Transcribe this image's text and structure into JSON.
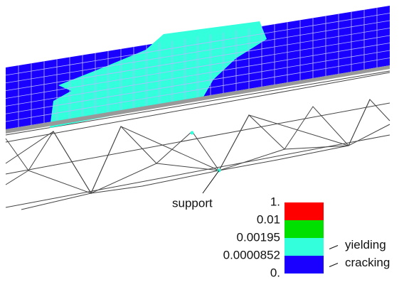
{
  "annotation": {
    "support": "support"
  },
  "legend": {
    "levels": [
      "1.",
      "0.01",
      "0.00195",
      "0.0000852",
      "0."
    ],
    "bands": [
      {
        "color": "#ff0000"
      },
      {
        "color": "#00e000",
        "label": null
      },
      {
        "color": "#33ffdd",
        "label": "yielding"
      },
      {
        "color": "#1a00ff",
        "label": "cracking"
      }
    ]
  }
}
